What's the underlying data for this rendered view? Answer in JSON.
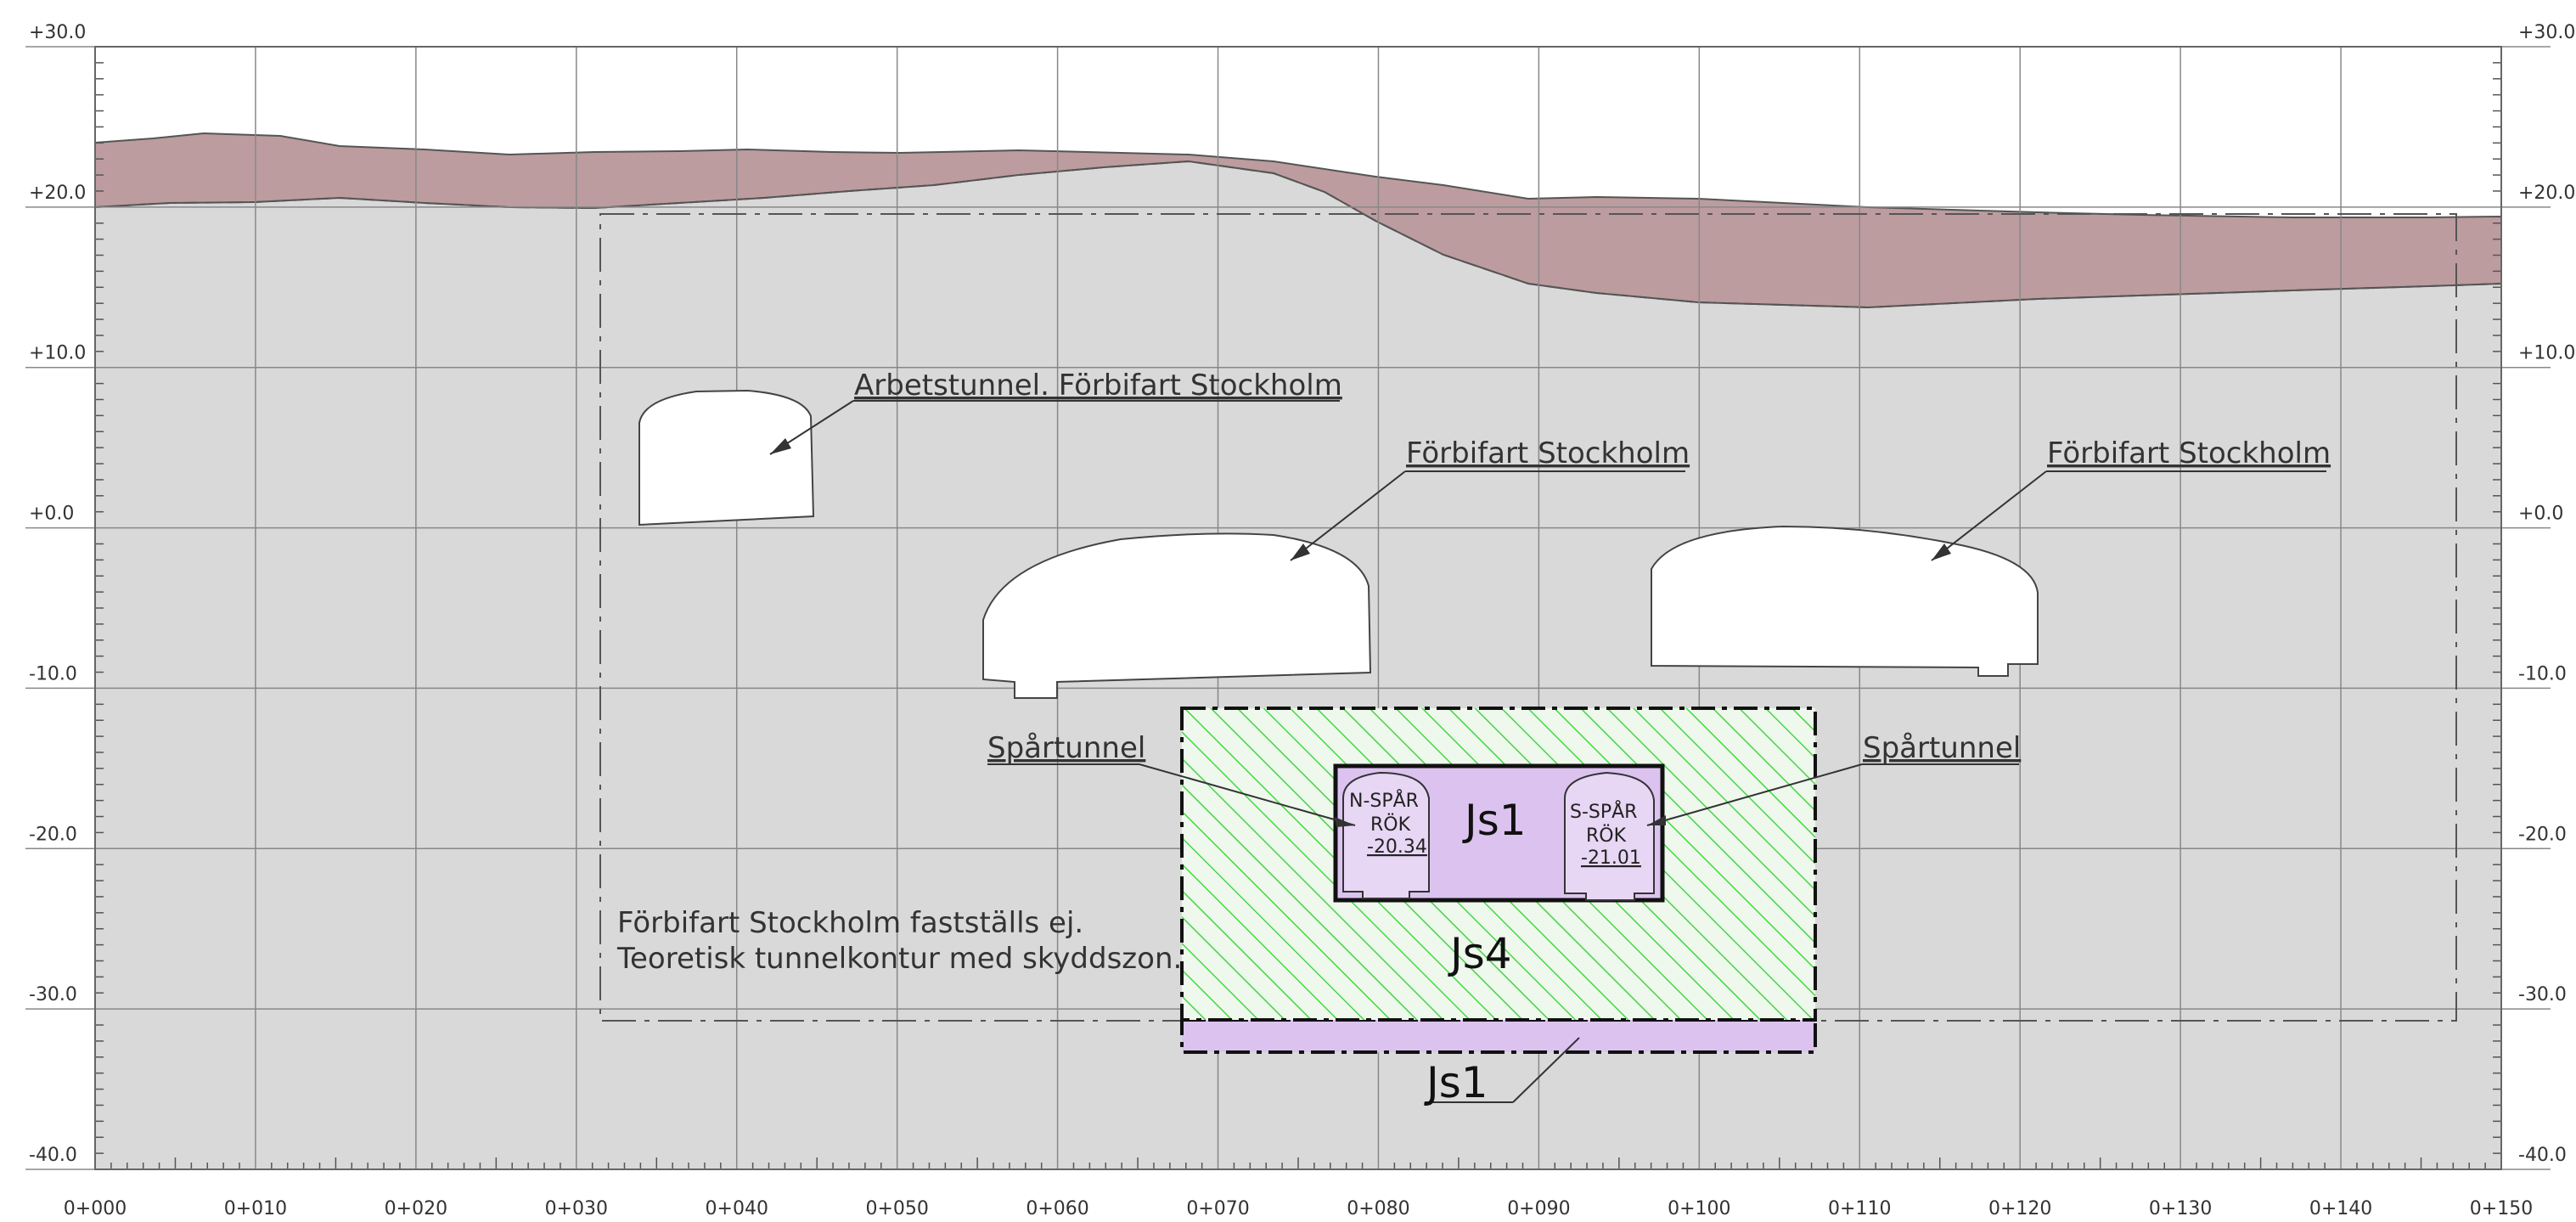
{
  "x_axis": {
    "unit_prefix": "0+",
    "ticks": [
      "0+000",
      "0+010",
      "0+020",
      "0+030",
      "0+040",
      "0+050",
      "0+060",
      "0+070",
      "0+080",
      "0+090",
      "0+100",
      "0+110",
      "0+120",
      "0+130",
      "0+140",
      "0+150"
    ],
    "range": [
      0,
      150
    ]
  },
  "y_axis": {
    "ticks": [
      "+30.0",
      "+20.0",
      "+10.0",
      "+0.0",
      "-10.0",
      "-20.0",
      "-30.0",
      "-40.0"
    ],
    "range": [
      -40,
      30
    ]
  },
  "labels": {
    "arbetstunnel": "Arbetstunnel. Förbifart Stockholm",
    "forbifart_left": "Förbifart Stockholm",
    "forbifart_right": "Förbifart Stockholm",
    "spartunnel_left": "Spårtunnel",
    "spartunnel_right": "Spårtunnel",
    "note_line1": "Förbifart Stockholm fastställs ej.",
    "note_line2": "Teoretisk tunnelkontur med skyddszon."
  },
  "zones": {
    "js1_inner": "Js1",
    "js4": "Js4",
    "js1_bottom": "Js1"
  },
  "tracks": {
    "north": {
      "name": "N-SPÅR",
      "rok_label": "RÖK",
      "rok_value": "-20.34"
    },
    "south": {
      "name": "S-SPÅR",
      "rok_label": "RÖK",
      "rok_value": "-21.01"
    }
  },
  "colors": {
    "soil": "#bc9c9f",
    "rock": "#d9d9d9",
    "zone_purple": "#dcc3ef",
    "hatch_green": "#46d646",
    "grid": "#888888"
  }
}
